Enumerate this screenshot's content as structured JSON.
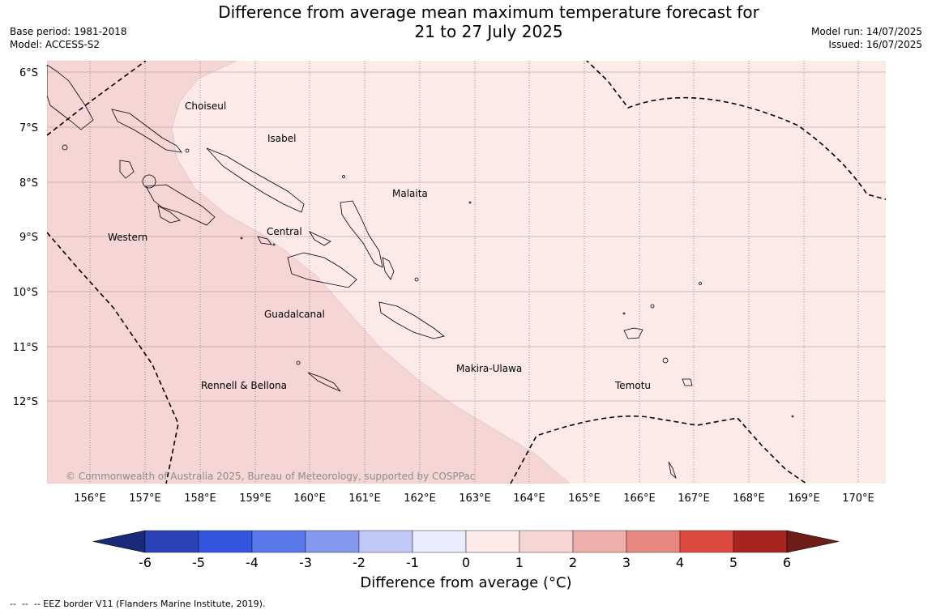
{
  "header": {
    "title_line1": "Difference from average mean maximum temperature forecast for",
    "title_line2": "21 to 27 July 2025",
    "base_period": "Base period: 1981-2018",
    "model": "Model: ACCESS-S2",
    "model_run": "Model run: 14/07/2025",
    "issued": "Issued: 16/07/2025"
  },
  "map": {
    "lat_labels": [
      "6°S",
      "7°S",
      "8°S",
      "9°S",
      "10°S",
      "11°S",
      "12°S"
    ],
    "lon_labels": [
      "156°E",
      "157°E",
      "158°E",
      "159°E",
      "160°E",
      "161°E",
      "162°E",
      "163°E",
      "164°E",
      "165°E",
      "166°E",
      "167°E",
      "168°E",
      "169°E",
      "170°E"
    ],
    "places": [
      "Choiseul",
      "Isabel",
      "Malaita",
      "Western",
      "Central",
      "Guadalcanal",
      "Makira-Ulawa",
      "Rennell & Bellona",
      "Temotu"
    ],
    "copyright": "© Commonwealth of Australia 2025, Bureau of Meteorology, supported by COSPPac",
    "colors": {
      "class_1_2": "#f5d6d4",
      "class_0_1": "#fbeae8",
      "background": "#ffffff"
    }
  },
  "colorbar": {
    "ticks": [
      "-6",
      "-5",
      "-4",
      "-3",
      "-2",
      "-1",
      "0",
      "1",
      "2",
      "3",
      "4",
      "5",
      "6"
    ],
    "colors": [
      "#1a2a78",
      "#2a44b8",
      "#3355e0",
      "#5a78e8",
      "#8498ee",
      "#c0c9f5",
      "#e8ecfc",
      "#fbeae8",
      "#f5d6d4",
      "#eeaeaa",
      "#e68880",
      "#dc4a40",
      "#a82420",
      "#6e1c18"
    ],
    "label": "Difference from average (°C)"
  },
  "footnote": "--  --  -- EEZ border V11 (Flanders Marine Institute, 2019)."
}
